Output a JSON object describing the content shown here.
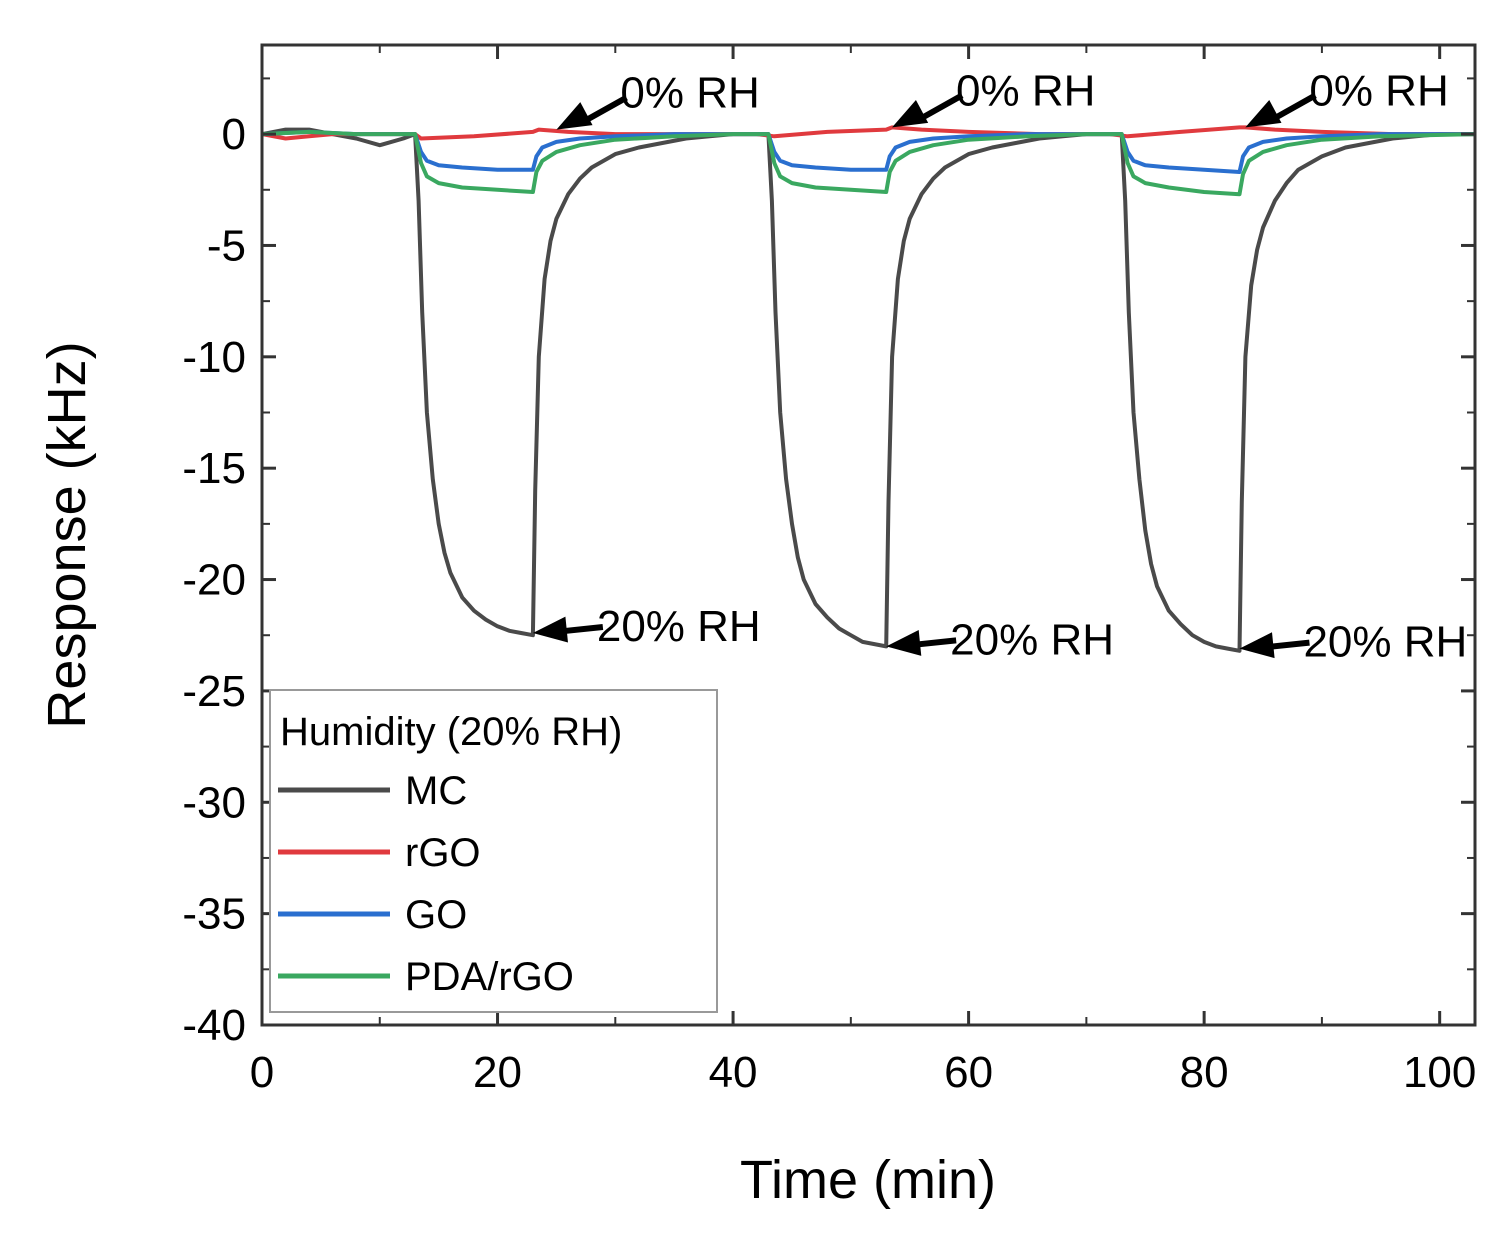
{
  "chart_data": {
    "type": "line",
    "title": "",
    "xlabel": "Time (min)",
    "ylabel": "Response (kHz)",
    "xlim": [
      0,
      103
    ],
    "ylim": [
      -40,
      4
    ],
    "xticks": [
      0,
      20,
      40,
      60,
      80,
      100
    ],
    "yticks": [
      0,
      -5,
      -10,
      -15,
      -20,
      -25,
      -30,
      -35,
      -40
    ],
    "grid": false,
    "legend": {
      "title": "Humidity (20% RH)",
      "position": "bottom-left",
      "entries": [
        "MC",
        "rGO",
        "GO",
        "PDA/rGO"
      ]
    },
    "series": [
      {
        "name": "MC",
        "color": "#4a4a4a",
        "x": [
          0,
          2,
          4,
          6,
          8,
          10,
          12,
          13,
          13.3,
          13.6,
          14,
          14.5,
          15,
          15.5,
          16,
          17,
          18,
          19,
          20,
          21,
          22,
          23,
          23.2,
          23.5,
          24,
          24.5,
          25,
          26,
          27,
          28,
          30,
          32,
          34,
          36,
          38,
          40,
          42,
          43,
          43.3,
          43.6,
          44,
          44.5,
          45,
          45.5,
          46,
          47,
          48,
          49,
          50,
          51,
          52,
          53,
          53.2,
          53.5,
          54,
          54.5,
          55,
          56,
          57,
          58,
          60,
          62,
          64,
          66,
          68,
          70,
          72,
          73,
          73.3,
          73.6,
          74,
          74.5,
          75,
          75.5,
          76,
          77,
          78,
          79,
          80,
          81,
          82,
          83,
          83.2,
          83.5,
          84,
          84.5,
          85,
          86,
          87,
          88,
          90,
          92,
          94,
          96,
          98,
          100,
          103
        ],
        "y": [
          0,
          0.2,
          0.2,
          0,
          -0.2,
          -0.5,
          -0.2,
          0,
          -3,
          -8,
          -12.5,
          -15.5,
          -17.5,
          -18.8,
          -19.7,
          -20.8,
          -21.4,
          -21.8,
          -22.1,
          -22.3,
          -22.4,
          -22.5,
          -16,
          -10,
          -6.5,
          -4.8,
          -3.8,
          -2.7,
          -2.0,
          -1.5,
          -0.9,
          -0.6,
          -0.4,
          -0.2,
          -0.1,
          0,
          0,
          0,
          -3,
          -8,
          -12.5,
          -15.5,
          -17.5,
          -19,
          -20,
          -21.1,
          -21.7,
          -22.2,
          -22.5,
          -22.8,
          -22.9,
          -23.0,
          -16.5,
          -10,
          -6.5,
          -4.8,
          -3.8,
          -2.7,
          -2.0,
          -1.5,
          -0.9,
          -0.6,
          -0.4,
          -0.2,
          -0.1,
          0,
          0,
          0,
          -3,
          -8,
          -12.5,
          -15.5,
          -17.8,
          -19.3,
          -20.3,
          -21.4,
          -22.0,
          -22.5,
          -22.8,
          -23.0,
          -23.1,
          -23.2,
          -16.5,
          -10,
          -6.8,
          -5.2,
          -4.2,
          -3.0,
          -2.2,
          -1.6,
          -1.0,
          -0.6,
          -0.4,
          -0.2,
          -0.1,
          0,
          0
        ]
      },
      {
        "name": "rGO",
        "color": "#e03a3e",
        "x": [
          0,
          2,
          4,
          6,
          8,
          10,
          12,
          13,
          13.5,
          18,
          23,
          23.5,
          26,
          30,
          36,
          42,
          43.5,
          48,
          53,
          53.5,
          56,
          60,
          66,
          72,
          73.5,
          78,
          83,
          83.5,
          86,
          90,
          96,
          103
        ],
        "y": [
          0,
          -0.2,
          -0.1,
          0,
          0,
          0,
          0,
          0,
          -0.2,
          -0.1,
          0.1,
          0.2,
          0.1,
          0,
          0,
          0,
          -0.1,
          0.1,
          0.2,
          0.3,
          0.2,
          0.1,
          0,
          0,
          -0.1,
          0.1,
          0.3,
          0.3,
          0.2,
          0.1,
          0,
          0
        ]
      },
      {
        "name": "GO",
        "color": "#2a6fcf",
        "x": [
          0,
          4,
          8,
          12,
          13,
          13.5,
          14,
          15,
          17,
          20,
          23,
          23.3,
          23.8,
          25,
          27,
          30,
          35,
          40,
          43,
          43.5,
          44,
          45,
          47,
          50,
          53,
          53.3,
          53.8,
          55,
          57,
          60,
          65,
          70,
          73,
          73.5,
          74,
          75,
          77,
          80,
          83,
          83.3,
          83.8,
          85,
          87,
          90,
          95,
          103
        ],
        "y": [
          0,
          0.1,
          0,
          0,
          0,
          -0.8,
          -1.2,
          -1.4,
          -1.5,
          -1.6,
          -1.6,
          -1.0,
          -0.6,
          -0.35,
          -0.2,
          -0.1,
          0,
          0,
          0,
          -0.8,
          -1.2,
          -1.4,
          -1.5,
          -1.6,
          -1.6,
          -1.0,
          -0.6,
          -0.35,
          -0.2,
          -0.1,
          0,
          0,
          0,
          -0.8,
          -1.2,
          -1.4,
          -1.5,
          -1.6,
          -1.7,
          -1.0,
          -0.6,
          -0.35,
          -0.2,
          -0.1,
          0,
          0
        ]
      },
      {
        "name": "PDA/rGO",
        "color": "#3aa860",
        "x": [
          0,
          4,
          8,
          12,
          13,
          13.5,
          14,
          15,
          17,
          20,
          23,
          23.3,
          23.8,
          25,
          27,
          30,
          35,
          40,
          43,
          43.5,
          44,
          45,
          47,
          50,
          53,
          53.3,
          53.8,
          55,
          57,
          60,
          65,
          70,
          73,
          73.5,
          74,
          75,
          77,
          80,
          83,
          83.3,
          83.8,
          85,
          87,
          90,
          95,
          103
        ],
        "y": [
          0,
          0.1,
          0,
          0,
          0,
          -1.3,
          -1.9,
          -2.2,
          -2.4,
          -2.5,
          -2.6,
          -1.7,
          -1.2,
          -0.8,
          -0.5,
          -0.25,
          -0.1,
          0,
          0,
          -1.3,
          -1.9,
          -2.2,
          -2.4,
          -2.5,
          -2.6,
          -1.7,
          -1.2,
          -0.8,
          -0.5,
          -0.25,
          -0.1,
          0,
          0,
          -1.3,
          -1.9,
          -2.2,
          -2.4,
          -2.6,
          -2.7,
          -1.8,
          -1.2,
          -0.8,
          -0.5,
          -0.25,
          -0.1,
          0
        ]
      }
    ],
    "annotations": [
      {
        "text": "0% RH",
        "x": 25,
        "y": 0.2
      },
      {
        "text": "0% RH",
        "x": 53.5,
        "y": 0.3
      },
      {
        "text": "0% RH",
        "x": 83.5,
        "y": 0.3
      },
      {
        "text": "20% RH",
        "x": 23,
        "y": -22.4
      },
      {
        "text": "20% RH",
        "x": 53,
        "y": -23.0
      },
      {
        "text": "20% RH",
        "x": 83,
        "y": -23.1
      }
    ]
  }
}
